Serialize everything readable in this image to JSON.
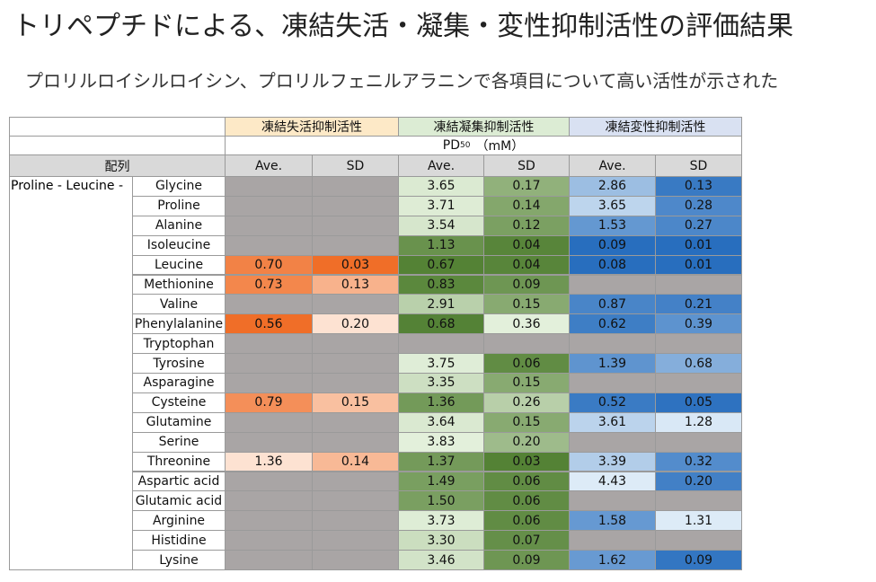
{
  "title": "トリペプチドによる、凍結失活・凝集・変性抑制活性の評価結果",
  "subtitle": "プロリルロイシルロイシン、プロリルフェニルアラニンで各項目について高い活性が示された",
  "table": {
    "groups": [
      "凍結失活抑制活性",
      "凍結凝集抑制活性",
      "凍結変性抑制活性"
    ],
    "unit": {
      "main": "PD",
      "sub": "50",
      "suffix": "（mM）"
    },
    "sequence_header": "配列",
    "stat_headers": [
      "Ave.",
      "SD",
      "Ave.",
      "SD",
      "Ave.",
      "SD"
    ],
    "prefix": "Proline - Leucine -",
    "rows": [
      {
        "name": "Glycine",
        "values": [
          null,
          null,
          "3.65",
          "0.17",
          "2.86",
          "0.13"
        ]
      },
      {
        "name": "Proline",
        "values": [
          null,
          null,
          "3.71",
          "0.14",
          "3.65",
          "0.28"
        ]
      },
      {
        "name": "Alanine",
        "values": [
          null,
          null,
          "3.54",
          "0.12",
          "1.53",
          "0.27"
        ]
      },
      {
        "name": "Isoleucine",
        "values": [
          null,
          null,
          "1.13",
          "0.04",
          "0.09",
          "0.01"
        ]
      },
      {
        "name": "Leucine",
        "values": [
          "0.70",
          "0.03",
          "0.67",
          "0.04",
          "0.08",
          "0.01"
        ]
      },
      {
        "name": "Methionine",
        "values": [
          "0.73",
          "0.13",
          "0.83",
          "0.09",
          null,
          null
        ]
      },
      {
        "name": "Valine",
        "values": [
          null,
          null,
          "2.91",
          "0.15",
          "0.87",
          "0.21"
        ]
      },
      {
        "name": "Phenylalanine",
        "values": [
          "0.56",
          "0.20",
          "0.68",
          "0.36",
          "0.62",
          "0.39"
        ]
      },
      {
        "name": "Tryptophan",
        "values": [
          null,
          null,
          null,
          null,
          null,
          null
        ]
      },
      {
        "name": "Tyrosine",
        "values": [
          null,
          null,
          "3.75",
          "0.06",
          "1.39",
          "0.68"
        ]
      },
      {
        "name": "Asparagine",
        "values": [
          null,
          null,
          "3.35",
          "0.15",
          null,
          null
        ]
      },
      {
        "name": "Cysteine",
        "values": [
          "0.79",
          "0.15",
          "1.36",
          "0.26",
          "0.52",
          "0.05"
        ]
      },
      {
        "name": "Glutamine",
        "values": [
          null,
          null,
          "3.64",
          "0.15",
          "3.61",
          "1.28"
        ]
      },
      {
        "name": "Serine",
        "values": [
          null,
          null,
          "3.83",
          "0.20",
          null,
          null
        ]
      },
      {
        "name": "Threonine",
        "values": [
          "1.36",
          "0.14",
          "1.37",
          "0.03",
          "3.39",
          "0.32"
        ]
      },
      {
        "name": "Aspartic acid",
        "values": [
          null,
          null,
          "1.49",
          "0.06",
          "4.43",
          "0.20"
        ]
      },
      {
        "name": "Glutamic acid",
        "values": [
          null,
          null,
          "1.50",
          "0.06",
          null,
          null
        ]
      },
      {
        "name": "Arginine",
        "values": [
          null,
          null,
          "3.73",
          "0.06",
          "1.58",
          "1.31"
        ]
      },
      {
        "name": "Histidine",
        "values": [
          null,
          null,
          "3.30",
          "0.07",
          null,
          null
        ]
      },
      {
        "name": "Lysine",
        "values": [
          null,
          null,
          "3.46",
          "0.09",
          "1.62",
          "0.09"
        ]
      }
    ]
  }
}
